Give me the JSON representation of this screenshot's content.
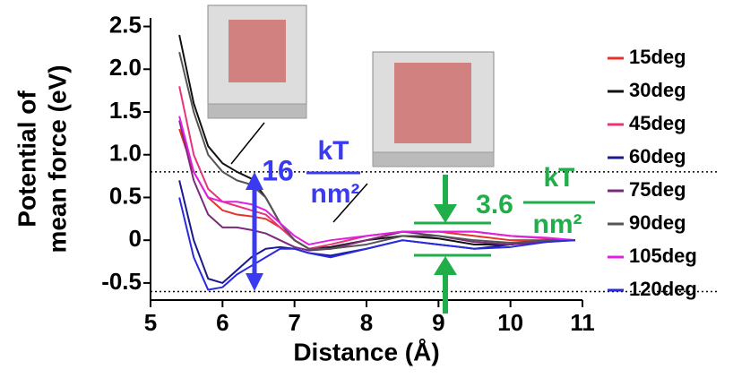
{
  "chart_data": {
    "type": "line",
    "x_label": "Distance (Å)",
    "y_label": [
      "Potential of",
      "mean force (eV)"
    ],
    "x": [
      5.4,
      5.6,
      5.8,
      6.0,
      6.2,
      6.4,
      6.6,
      6.8,
      7.0,
      7.2,
      7.5,
      8.0,
      8.5,
      9.0,
      9.5,
      10.0,
      10.5,
      10.9
    ],
    "xlim": [
      5,
      11
    ],
    "xticks": [
      5,
      6,
      7,
      8,
      9,
      10,
      11
    ],
    "ylim": [
      -0.7,
      2.6
    ],
    "yticks": [
      {
        "value": -0.5,
        "label": "-0.5"
      },
      0,
      0.5,
      {
        "value": 1.0,
        "label": "1.0"
      },
      1.5,
      {
        "value": 2.0,
        "label": "2.0"
      },
      2.5
    ],
    "reference_lines": [
      0.8,
      -0.6
    ],
    "series": [
      {
        "name": "15deg",
        "color": "#e8312a",
        "values": [
          1.3,
          0.8,
          0.5,
          0.35,
          0.3,
          0.28,
          0.25,
          0.15,
          0.0,
          -0.1,
          -0.1,
          0.0,
          0.1,
          0.1,
          0.05,
          0.0,
          0.0,
          0.0
        ]
      },
      {
        "name": "30deg",
        "color": "#111111",
        "values": [
          2.4,
          1.6,
          1.1,
          0.9,
          0.8,
          0.72,
          0.5,
          0.2,
          0.0,
          -0.1,
          -0.08,
          0.0,
          0.05,
          0.02,
          -0.05,
          -0.05,
          0.0,
          0.0
        ]
      },
      {
        "name": "45deg",
        "color": "#e8337a",
        "values": [
          1.8,
          1.0,
          0.6,
          0.45,
          0.4,
          0.35,
          0.3,
          0.15,
          0.0,
          -0.1,
          -0.05,
          0.05,
          0.1,
          0.1,
          0.1,
          0.05,
          0.02,
          0.0
        ]
      },
      {
        "name": "60deg",
        "color": "#1a1a8c",
        "values": [
          0.7,
          0.0,
          -0.45,
          -0.5,
          -0.35,
          -0.2,
          -0.1,
          -0.08,
          -0.1,
          -0.15,
          -0.18,
          -0.1,
          0.0,
          -0.05,
          -0.1,
          -0.05,
          0.0,
          0.0
        ]
      },
      {
        "name": "75deg",
        "color": "#7a2a7a",
        "values": [
          1.4,
          0.7,
          0.3,
          0.15,
          0.15,
          0.12,
          0.08,
          0.0,
          -0.08,
          -0.12,
          -0.1,
          0.0,
          0.1,
          0.05,
          -0.02,
          -0.05,
          -0.02,
          0.0
        ]
      },
      {
        "name": "90deg",
        "color": "#555555",
        "values": [
          2.2,
          1.5,
          1.0,
          0.8,
          0.7,
          0.65,
          0.5,
          0.2,
          0.0,
          -0.1,
          -0.1,
          -0.05,
          0.05,
          0.05,
          0.0,
          -0.03,
          0.0,
          0.0
        ]
      },
      {
        "name": "105deg",
        "color": "#e020e0",
        "values": [
          1.45,
          0.8,
          0.5,
          0.45,
          0.45,
          0.42,
          0.35,
          0.2,
          0.05,
          -0.05,
          0.0,
          0.05,
          0.1,
          0.1,
          0.1,
          0.05,
          0.03,
          0.0
        ]
      },
      {
        "name": "120deg",
        "color": "#2a2ae0",
        "values": [
          0.5,
          -0.2,
          -0.58,
          -0.55,
          -0.4,
          -0.3,
          -0.2,
          -0.1,
          -0.1,
          -0.15,
          -0.2,
          -0.1,
          0.0,
          -0.05,
          -0.1,
          -0.08,
          -0.02,
          0.0
        ]
      }
    ],
    "annotations": [
      "16",
      "kT",
      "nm²",
      "3.6",
      "kT",
      "nm²"
    ]
  }
}
